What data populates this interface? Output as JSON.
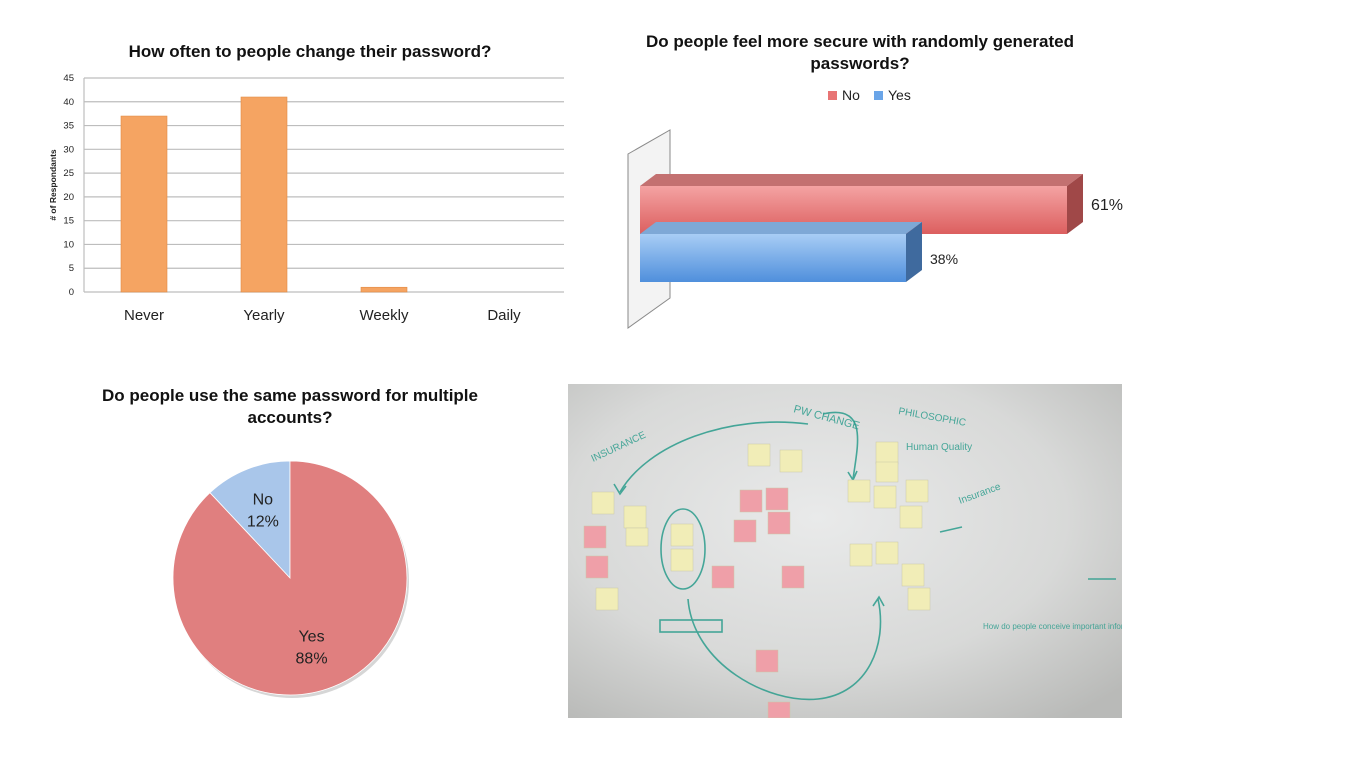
{
  "chart_data": [
    {
      "type": "bar",
      "title": "How often to people change their password?",
      "ylabel": "# of Respondants",
      "xlabel": "",
      "categories": [
        "Never",
        "Yearly",
        "Weekly",
        "Daily"
      ],
      "values": [
        37,
        41,
        1,
        0
      ],
      "ylim": [
        0,
        45
      ],
      "yticks": [
        0,
        5,
        10,
        15,
        20,
        25,
        30,
        35,
        40,
        45
      ],
      "grid": true,
      "color": "#f5a462"
    },
    {
      "type": "bar",
      "orientation": "horizontal",
      "style": "3d",
      "title": "Do people feel more secure with randomly generated passwords?",
      "legend_position": "top",
      "series": [
        {
          "name": "No",
          "values": [
            61
          ],
          "label": "61%",
          "color": "#e87474"
        },
        {
          "name": "Yes",
          "values": [
            38
          ],
          "label": "38%",
          "color": "#6aa5e8"
        }
      ],
      "xlim": [
        0,
        100
      ]
    },
    {
      "type": "pie",
      "title": "Do people use the same password for multiple accounts?",
      "slices": [
        {
          "label": "No",
          "pct_label": "12%",
          "value": 12,
          "color": "#a9c6ea"
        },
        {
          "label": "Yes",
          "pct_label": "88%",
          "value": 88,
          "color": "#e07f7f"
        }
      ]
    }
  ],
  "photo": {
    "name": "whiteboard affinity diagram with sticky notes",
    "labels": [
      "INSURANCE",
      "PW CHANGE",
      "PHILOSOPHIC",
      "Human Quality",
      "Insurance",
      "How do people conceive important information?"
    ]
  }
}
